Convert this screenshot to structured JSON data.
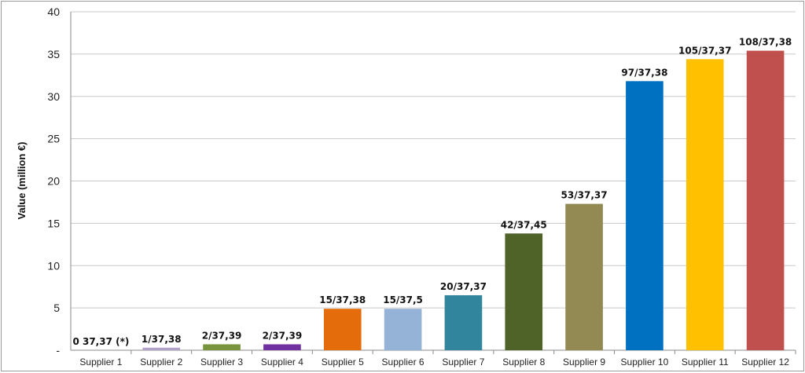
{
  "chart_data": {
    "type": "bar",
    "ylabel": "Value (million €)",
    "ylim": [
      0,
      40
    ],
    "y_ticks": [
      {
        "value": 0,
        "label": "-"
      },
      {
        "value": 5,
        "label": "5"
      },
      {
        "value": 10,
        "label": "10"
      },
      {
        "value": 15,
        "label": "15"
      },
      {
        "value": 20,
        "label": "20"
      },
      {
        "value": 25,
        "label": "25"
      },
      {
        "value": 30,
        "label": "30"
      },
      {
        "value": 35,
        "label": "35"
      },
      {
        "value": 40,
        "label": "40"
      }
    ],
    "grid": true,
    "categories": [
      "Supplier 1",
      "Supplier 2",
      "Supplier 3",
      "Supplier 4",
      "Supplier 5",
      "Supplier 6",
      "Supplier 7",
      "Supplier 8",
      "Supplier 9",
      "Supplier 10",
      "Supplier 11",
      "Supplier 12"
    ],
    "values": [
      0,
      0.3,
      0.7,
      0.7,
      4.9,
      4.9,
      6.5,
      13.8,
      17.3,
      31.8,
      34.4,
      35.4
    ],
    "data_labels": [
      "0 37,37 (*)",
      "1/37,38",
      "2/37,39",
      "2/37,39",
      "15/37,38",
      "15/37,5",
      "20/37,37",
      "42/37,45",
      "53/37,37",
      "97/37,38",
      "105/37,37",
      "108/37,38"
    ],
    "colors": [
      "#4f81bd",
      "#b3a2c7",
      "#77933c",
      "#7030a0",
      "#e46c0a",
      "#95b3d7",
      "#31859c",
      "#4f6228",
      "#938953",
      "#0070c0",
      "#ffc000",
      "#c0504d"
    ]
  }
}
